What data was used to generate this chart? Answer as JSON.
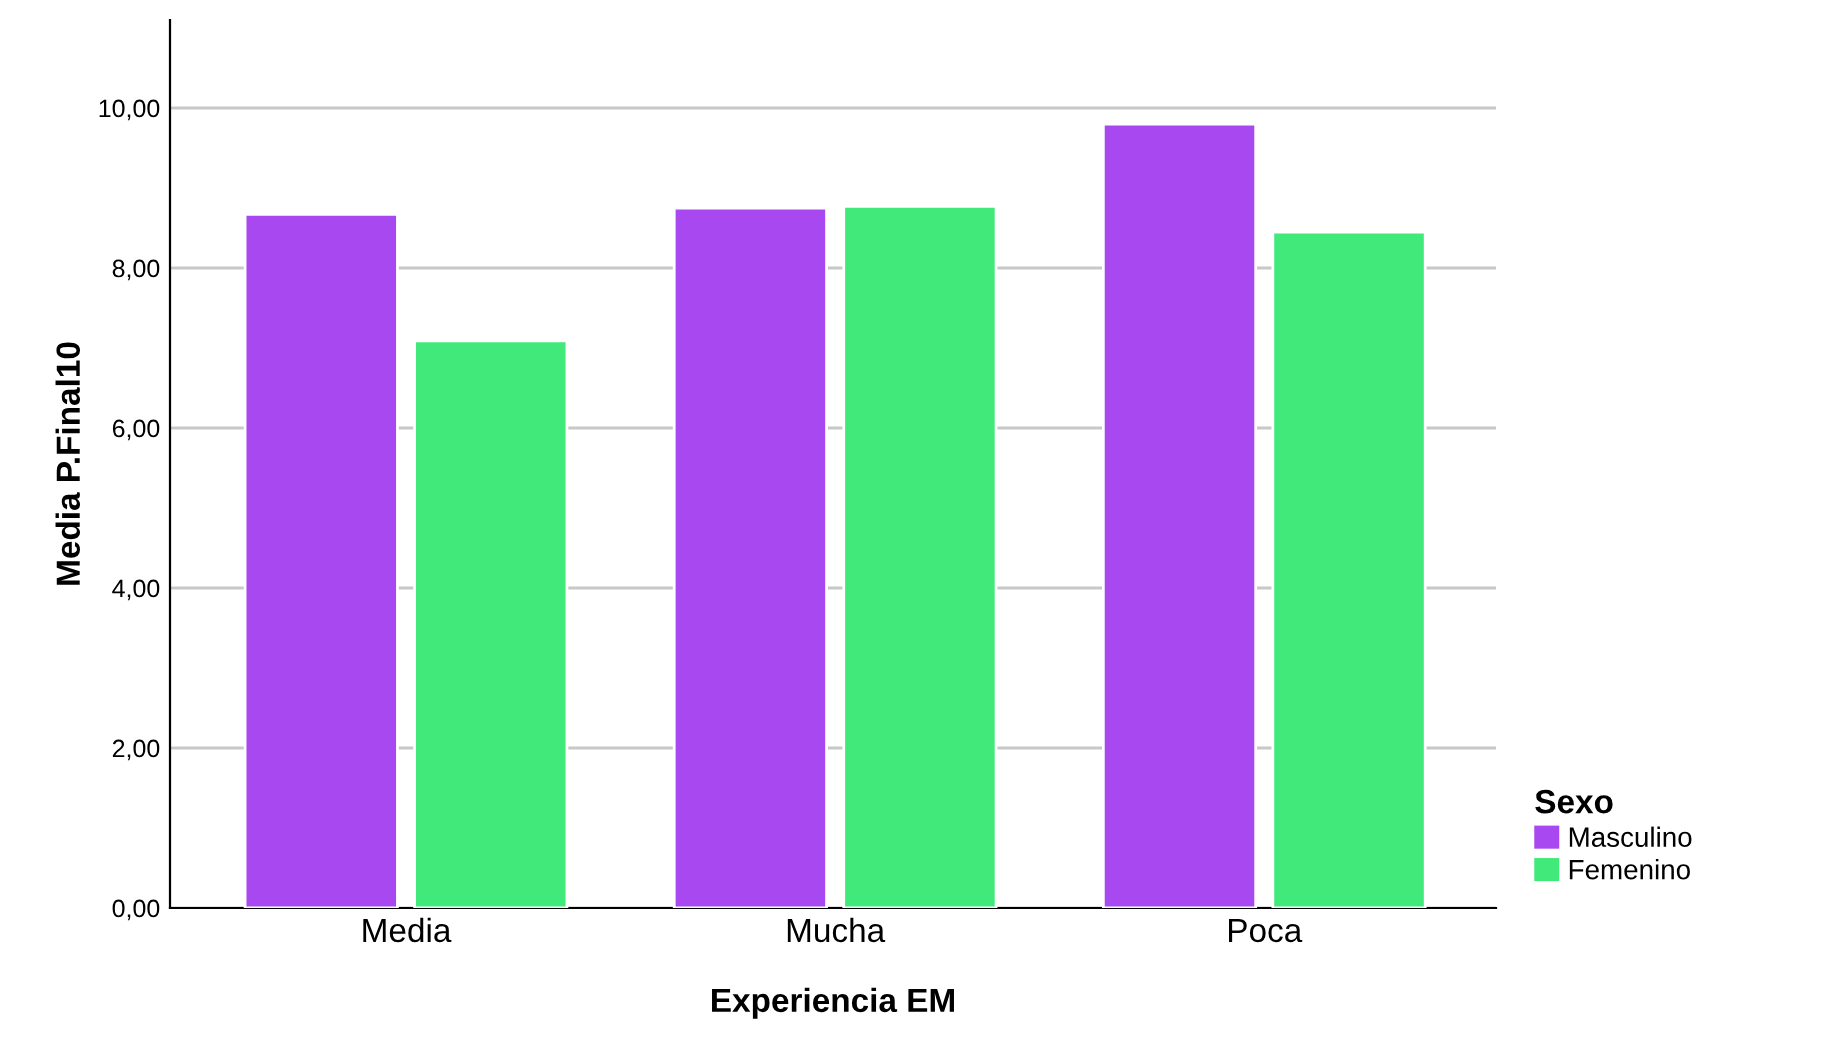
{
  "chart_data": {
    "type": "bar",
    "xlabel": "Experiencia EM",
    "ylabel": "Media P.Final10",
    "legend_title": "Sexo",
    "categories": [
      "Media",
      "Mucha",
      "Poca"
    ],
    "series": [
      {
        "name": "Masculino",
        "color": "#a748f0",
        "values": [
          8.67,
          8.75,
          9.8
        ]
      },
      {
        "name": "Femenino",
        "color": "#40e97a",
        "values": [
          7.09,
          8.77,
          8.45
        ]
      }
    ],
    "ylim": [
      0,
      11.1
    ],
    "yticks": [
      {
        "value": 0,
        "label": "0,00"
      },
      {
        "value": 2,
        "label": "2,00"
      },
      {
        "value": 4,
        "label": "4,00"
      },
      {
        "value": 6,
        "label": "6,00"
      },
      {
        "value": 8,
        "label": "8,00"
      },
      {
        "value": 10,
        "label": "10,00"
      }
    ],
    "grid": "y",
    "legend": "right"
  }
}
